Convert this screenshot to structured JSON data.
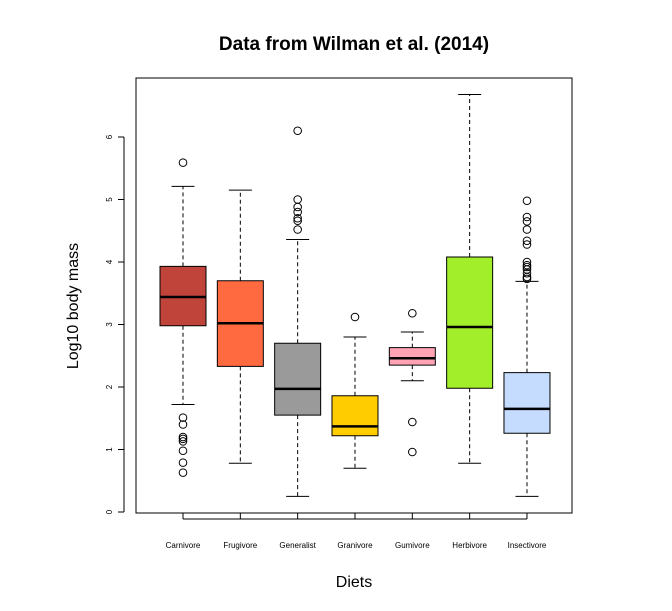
{
  "chart_data": {
    "type": "boxplot",
    "title": "Data from Wilman et al. (2014)",
    "xlabel": "Diets",
    "ylabel": "Log10 body mass",
    "ylim": [
      0,
      7
    ],
    "yticks": [
      0,
      1,
      2,
      3,
      4,
      5,
      6
    ],
    "grid": false,
    "legend": "none",
    "categories": [
      "Carnivore",
      "Frugivore",
      "Generalist",
      "Granivore",
      "Gumivore",
      "Herbivore",
      "Insectivore"
    ],
    "boxes": [
      {
        "category": "Carnivore",
        "color": "#c0443a",
        "whisker_low": 1.72,
        "q1": 2.98,
        "median": 3.44,
        "q3": 3.93,
        "whisker_high": 5.21,
        "outliers": [
          5.59,
          1.51,
          1.4,
          1.2,
          1.17,
          1.13,
          0.98,
          0.79,
          0.63
        ]
      },
      {
        "category": "Frugivore",
        "color": "#ff6a40",
        "whisker_low": 0.78,
        "q1": 2.33,
        "median": 3.02,
        "q3": 3.7,
        "whisker_high": 5.15,
        "outliers": []
      },
      {
        "category": "Generalist",
        "color": "#9a9a9a",
        "whisker_low": 0.25,
        "q1": 1.55,
        "median": 1.97,
        "q3": 2.7,
        "whisker_high": 4.36,
        "outliers": [
          6.1,
          5.0,
          4.88,
          4.8,
          4.7,
          4.66,
          4.52
        ]
      },
      {
        "category": "Granivore",
        "color": "#ffcc00",
        "whisker_low": 0.7,
        "q1": 1.22,
        "median": 1.37,
        "q3": 1.86,
        "whisker_high": 2.8,
        "outliers": [
          3.12
        ]
      },
      {
        "category": "Gumivore",
        "color": "#ffa2b4",
        "whisker_low": 2.1,
        "q1": 2.35,
        "median": 2.46,
        "q3": 2.63,
        "whisker_high": 2.88,
        "outliers": [
          3.18,
          1.44,
          0.96
        ]
      },
      {
        "category": "Herbivore",
        "color": "#a2ee2a",
        "whisker_low": 0.78,
        "q1": 1.98,
        "median": 2.96,
        "q3": 4.08,
        "whisker_high": 6.68,
        "outliers": []
      },
      {
        "category": "Insectivore",
        "color": "#c5dcff",
        "whisker_low": 0.25,
        "q1": 1.26,
        "median": 1.65,
        "q3": 2.23,
        "whisker_high": 3.69,
        "outliers": [
          4.98,
          4.72,
          4.65,
          4.52,
          4.34,
          4.28,
          4.0,
          3.95,
          3.92,
          3.88,
          3.82,
          3.76,
          3.73
        ]
      }
    ]
  }
}
